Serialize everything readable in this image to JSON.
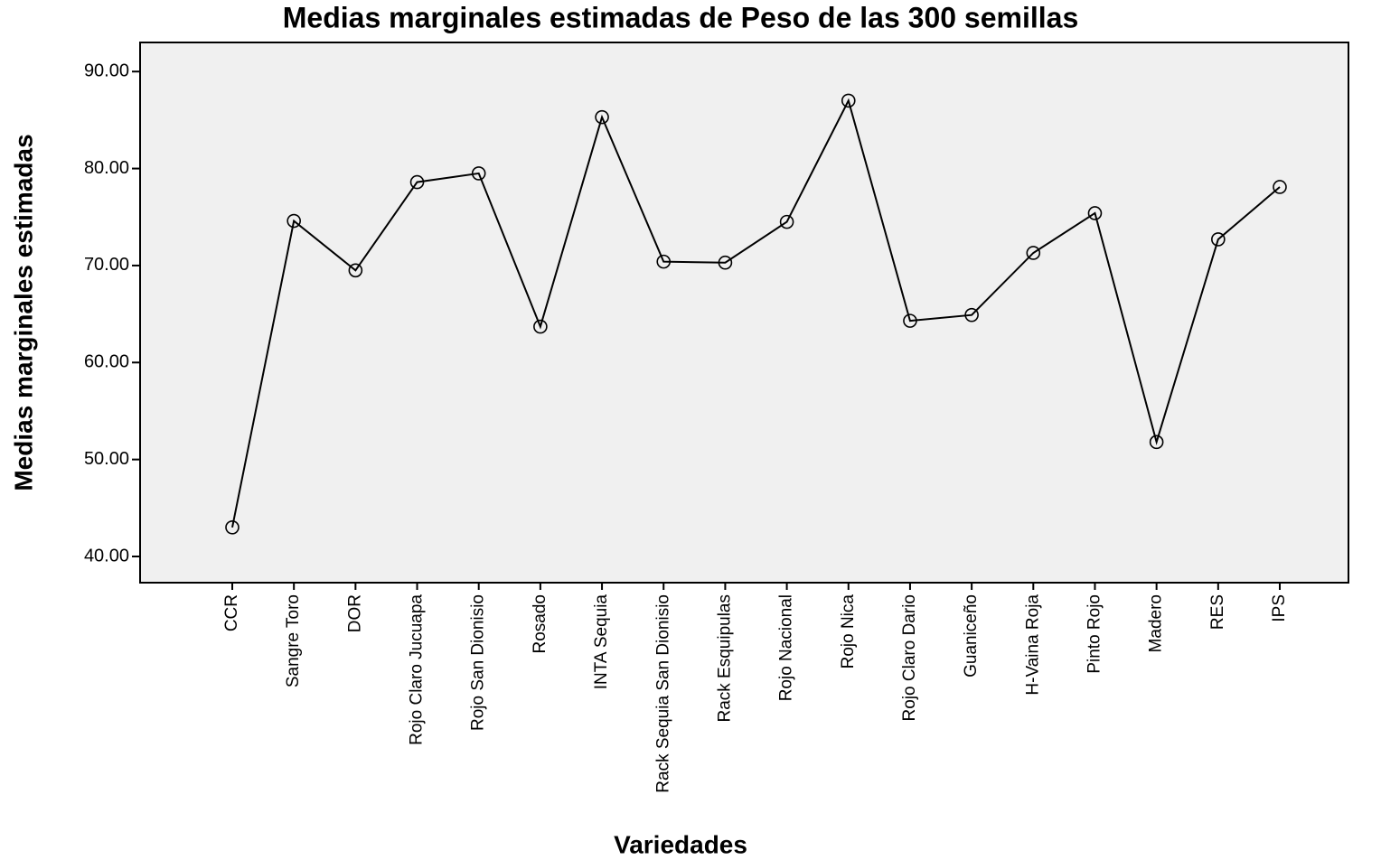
{
  "chart_data": {
    "type": "line",
    "title": "Medias marginales estimadas de Peso de las 300 semillas",
    "x_label": "Variedades",
    "y_label": "Medias marginales estimadas",
    "categories": [
      "CCR",
      "Sangre Toro",
      "DOR",
      "Rojo Claro Jucuapa",
      "Rojo San Dionisio",
      "Rosado",
      "INTA Sequia",
      "Rack Sequia San Dionisio",
      "Rack Esquipulas",
      "Rojo Nacional",
      "Rojo Nica",
      "Rojo Claro Dario",
      "Guaniceño",
      "H-Vaina Roja",
      "Pinto Rojo",
      "Madero",
      "RES",
      "IPS"
    ],
    "series": [
      {
        "name": "Peso de las 300 semillas",
        "color": "#000000",
        "values": [
          43.0,
          74.6,
          69.5,
          78.6,
          79.5,
          63.7,
          85.3,
          70.4,
          70.3,
          74.5,
          87.0,
          64.3,
          64.9,
          71.3,
          75.4,
          51.8,
          72.7,
          78.1
        ]
      }
    ],
    "ylim": [
      37.3,
      93.0
    ],
    "yticks": [
      {
        "value": 40,
        "label": "40.00"
      },
      {
        "value": 50,
        "label": "50.00"
      },
      {
        "value": 60,
        "label": "60.00"
      },
      {
        "value": 70,
        "label": "70.00"
      },
      {
        "value": 80,
        "label": "80.00"
      },
      {
        "value": 90,
        "label": "90.00"
      }
    ],
    "grid": false,
    "background": "#f0f0f0"
  }
}
